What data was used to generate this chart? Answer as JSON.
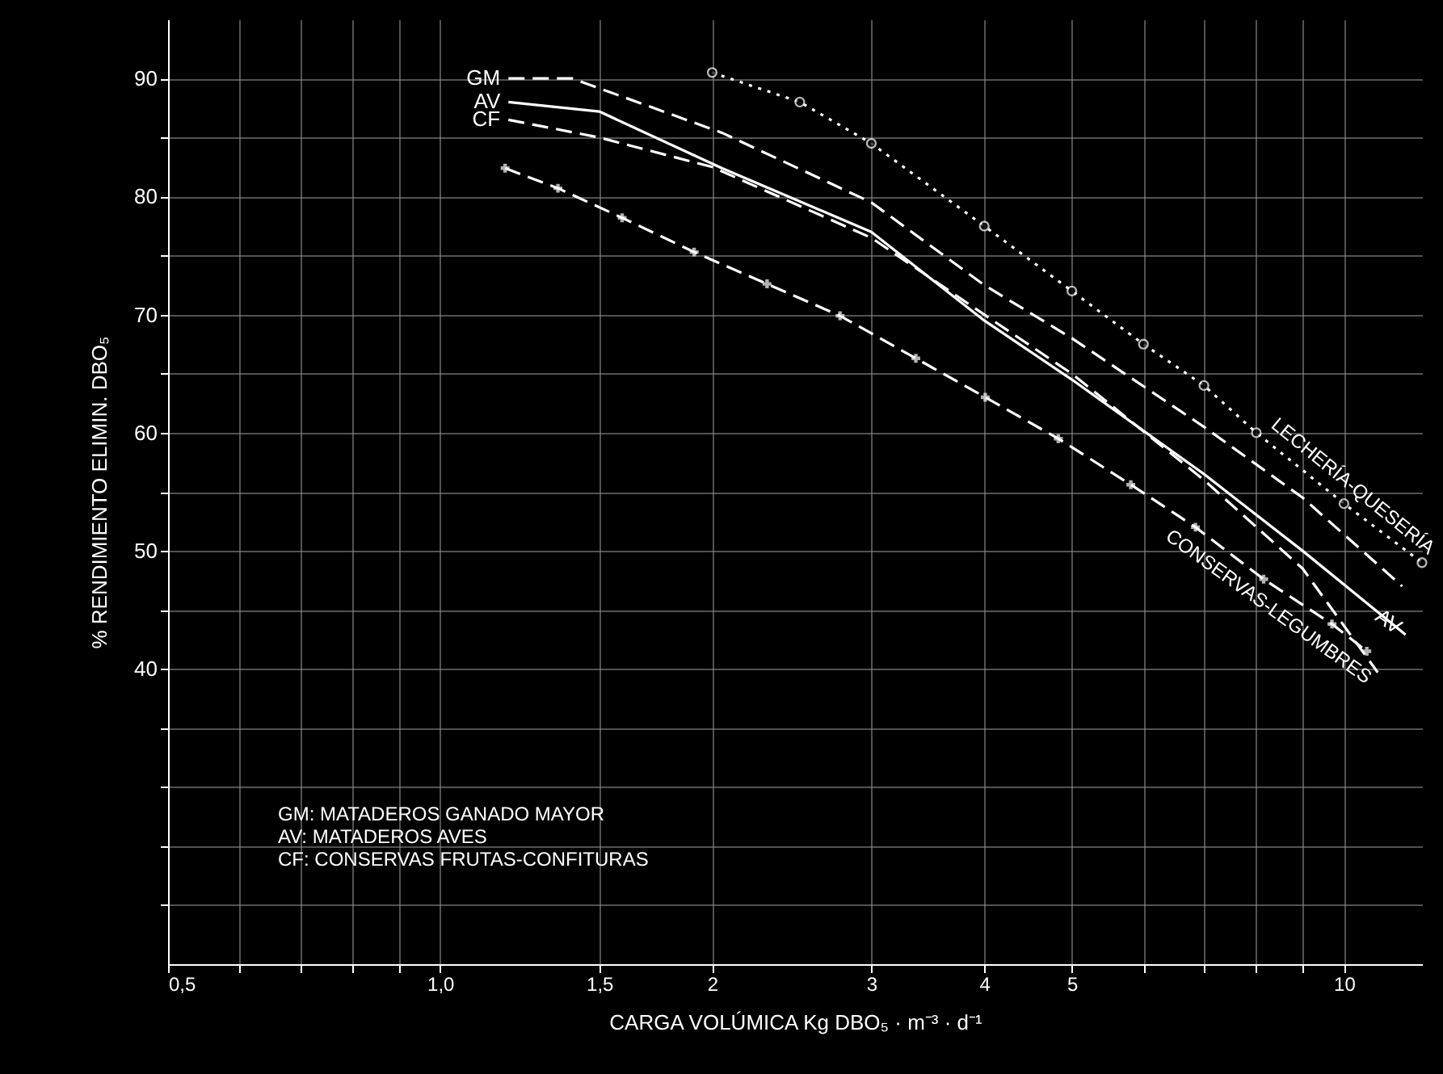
{
  "chart_data": {
    "type": "line",
    "xlabel": "CARGA VOLÚMICA Kg DBO₅ · m⁻³ · d⁻¹",
    "ylabel": "% RENDIMIENTO ELIMIN. DBO₅",
    "log": "x",
    "xlim": [
      0.5,
      12.2
    ],
    "xticks": [
      {
        "value": 0.5,
        "label": "0,5"
      },
      {
        "value": 0.6,
        "label": null
      },
      {
        "value": 0.7,
        "label": null
      },
      {
        "value": 0.8,
        "label": null
      },
      {
        "value": 0.9,
        "label": null
      },
      {
        "value": 1,
        "label": "1,0"
      },
      {
        "value": 1.5,
        "label": "1,5"
      },
      2,
      3,
      4,
      5,
      {
        "value": 6,
        "label": null
      },
      {
        "value": 7,
        "label": null
      },
      {
        "value": 8,
        "label": null
      },
      {
        "value": 9,
        "label": null
      },
      10
    ],
    "ylim": [
      15,
      95
    ],
    "yticks": [
      {
        "value": 20,
        "label": null
      },
      {
        "value": 25,
        "label": null
      },
      {
        "value": 30,
        "label": null
      },
      {
        "value": 35,
        "label": null
      },
      40,
      {
        "value": 45,
        "label": null
      },
      50,
      {
        "value": 55,
        "label": null
      },
      60,
      {
        "value": 65,
        "label": null
      },
      70,
      {
        "value": 75,
        "label": null
      },
      80,
      {
        "value": 85,
        "label": null
      },
      90
    ],
    "grid": true,
    "series": [
      {
        "name": "GM",
        "color": "#ffffff",
        "line_style": "dashed",
        "marker": "none",
        "x": [
          1.19,
          1.4,
          2.05,
          3,
          4,
          5,
          7,
          9,
          11.6
        ],
        "values": [
          90,
          90,
          85.4,
          79.5,
          72.5,
          68,
          60.5,
          54.5,
          47
        ]
      },
      {
        "name": "AV",
        "color": "#ffffff",
        "line_style": "solid",
        "marker": "none",
        "x": [
          1.19,
          1.5,
          2.05,
          3,
          4,
          5,
          7,
          9,
          11.7
        ],
        "values": [
          88,
          87.2,
          82.4,
          77,
          69.5,
          64.5,
          56.5,
          50,
          42.9
        ]
      },
      {
        "name": "CF",
        "color": "#ffffff",
        "line_style": "dashed",
        "marker": "none",
        "x": [
          1.19,
          1.5,
          2,
          3,
          4,
          5,
          7,
          9,
          10.9
        ],
        "values": [
          86.5,
          85,
          82.5,
          76.5,
          70,
          65,
          56,
          48.5,
          39.7
        ]
      },
      {
        "name": "LECHERÍA-QUESERÍA",
        "color": "#ffffff",
        "line_style": "dotted",
        "marker": "circle",
        "x": [
          2,
          2.5,
          3,
          4,
          5,
          6,
          7,
          8,
          10,
          12.2
        ],
        "values": [
          90.5,
          88,
          84.5,
          77.5,
          72,
          67.5,
          64,
          60,
          54,
          49
        ]
      },
      {
        "name": "CONSERVAS-LEGUMBRES",
        "color": "#ffffff",
        "line_style": "dashed",
        "marker": "cross",
        "x": [
          1.18,
          1.35,
          1.59,
          1.91,
          2.3,
          2.77,
          3.36,
          4.01,
          4.83,
          5.81,
          6.85,
          8.15,
          9.7,
          10.6
        ],
        "values": [
          82.4,
          80.7,
          78.2,
          75.3,
          72.6,
          69.9,
          66.3,
          63,
          59.5,
          55.6,
          52,
          47.6,
          43.8,
          41.5
        ]
      }
    ],
    "annotations": [
      {
        "text": "AV",
        "x": 11.2,
        "y": 44
      },
      "GM: MATADEROS GANADO MAYOR",
      "AV: MATADEROS AVES",
      "CF: CONSERVAS FRUTAS-CONFITURAS"
    ]
  }
}
